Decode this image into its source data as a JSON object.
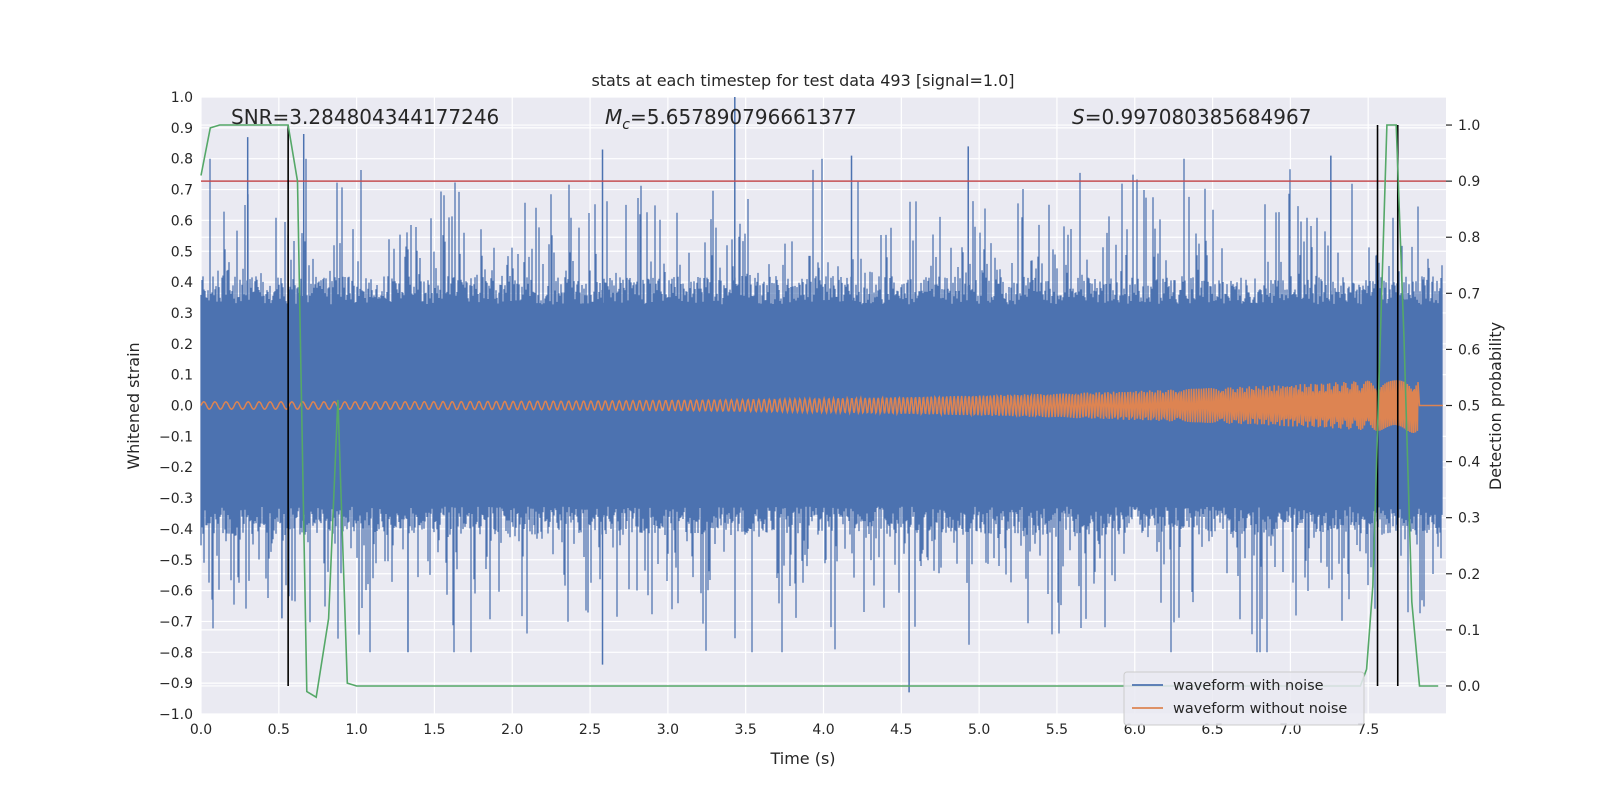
{
  "chart_data": {
    "type": "line",
    "title": "stats at each timestep for test data 493 [signal=1.0]",
    "xlabel": "Time (s)",
    "ylabel": "Whitened strain",
    "y2label": "Detection probability",
    "xlim": [
      0.0,
      8.0
    ],
    "ylim": [
      -1.0,
      1.0
    ],
    "y2lim": [
      -0.05,
      1.05
    ],
    "xticks": [
      "0.0",
      "0.5",
      "1.0",
      "1.5",
      "2.0",
      "2.5",
      "3.0",
      "3.5",
      "4.0",
      "4.5",
      "5.0",
      "5.5",
      "6.0",
      "6.5",
      "7.0",
      "7.5"
    ],
    "yticks": [
      "1.0",
      "0.9",
      "0.8",
      "0.7",
      "0.6",
      "0.5",
      "0.4",
      "0.3",
      "0.2",
      "0.1",
      "0.0",
      "−0.1",
      "−0.2",
      "−0.3",
      "−0.4",
      "−0.5",
      "−0.6",
      "−0.7",
      "−0.8",
      "−0.9",
      "−1.0"
    ],
    "y2ticks": [
      "1.0",
      "0.9",
      "0.8",
      "0.7",
      "0.6",
      "0.5",
      "0.4",
      "0.3",
      "0.2",
      "0.1",
      "0.0"
    ],
    "annotations": {
      "snr": "SNR=3.284804344177246",
      "mc_symbol": "M",
      "mc_sub": "c",
      "mc_value": "=5.657890796661377",
      "s_symbol": "S",
      "s_value": "=0.997080385684967"
    },
    "threshold": {
      "value": 0.9,
      "axis": "y2",
      "color": "#c44e52"
    },
    "vlines": [
      0.56,
      7.56,
      7.69
    ],
    "legend": {
      "placement": "lower-right",
      "entries": [
        {
          "label": "waveform with noise",
          "color": "#4c72b0"
        },
        {
          "label": "waveform without noise",
          "color": "#dd8452"
        }
      ]
    },
    "series": [
      {
        "name": "waveform with noise",
        "axis": "y",
        "color": "#4c72b0",
        "style": "noise",
        "envelope": 0.42,
        "extreme": 1.0,
        "notable_peaks": [
          {
            "x": 0.3,
            "y": 0.87
          },
          {
            "x": 0.66,
            "y": 0.88
          },
          {
            "x": 2.58,
            "y": 0.83
          },
          {
            "x": 3.43,
            "y": 1.0
          },
          {
            "x": 4.18,
            "y": 0.81
          },
          {
            "x": 4.93,
            "y": 0.84
          },
          {
            "x": 7.26,
            "y": 0.81
          },
          {
            "x": 2.58,
            "y": -0.84
          },
          {
            "x": 4.55,
            "y": -0.93
          },
          {
            "x": 0.52,
            "y": -0.69
          },
          {
            "x": 1.33,
            "y": -0.8
          }
        ]
      },
      {
        "name": "waveform without noise",
        "axis": "y",
        "color": "#dd8452",
        "style": "chirp",
        "amp_start": 0.012,
        "amp_end": 0.09,
        "merger_x": 7.82
      },
      {
        "name": "detection probability",
        "axis": "y2",
        "color": "#55a868",
        "style": "line",
        "x": [
          0.0,
          0.06,
          0.12,
          0.56,
          0.62,
          0.68,
          0.74,
          0.82,
          0.88,
          0.94,
          1.0,
          7.45,
          7.49,
          7.53,
          7.57,
          7.62,
          7.68,
          7.73,
          7.78,
          7.83,
          7.95
        ],
        "y": [
          0.91,
          0.995,
          1.0,
          1.0,
          0.9,
          -0.01,
          -0.02,
          0.12,
          0.51,
          0.005,
          0.0,
          0.0,
          0.03,
          0.18,
          0.55,
          1.0,
          1.0,
          0.62,
          0.15,
          0.0,
          0.0
        ]
      }
    ]
  }
}
